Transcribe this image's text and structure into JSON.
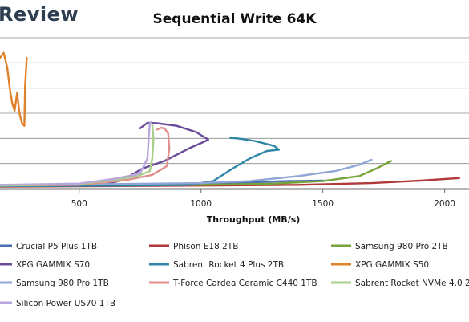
{
  "header": {
    "watermark": "Review"
  },
  "chart_data": {
    "type": "line",
    "title": "Sequential Write 64K",
    "xlabel": "Throughput (MB/s)",
    "ylabel": "",
    "x_ticks": [
      500,
      1000,
      1500,
      2000
    ],
    "xlim": [
      175,
      2100
    ],
    "ylim": [
      0,
      6
    ],
    "y_gridlines": [
      1,
      2,
      3,
      4,
      5,
      6
    ],
    "grid": true,
    "legend_position": "bottom",
    "series": [
      {
        "name": "Crucial P5 Plus 1TB",
        "color": "#4a6fb3",
        "points": [
          [
            175,
            0.1
          ],
          [
            500,
            0.12
          ],
          [
            800,
            0.15
          ],
          [
            1000,
            0.2
          ],
          [
            1200,
            0.25
          ],
          [
            1350,
            0.3
          ],
          [
            1500,
            0.32
          ]
        ]
      },
      {
        "name": "Phison E18 2TB",
        "color": "#b03a3a",
        "points": [
          [
            175,
            0.08
          ],
          [
            600,
            0.1
          ],
          [
            1000,
            0.12
          ],
          [
            1400,
            0.15
          ],
          [
            1700,
            0.22
          ],
          [
            1900,
            0.32
          ],
          [
            2060,
            0.42
          ]
        ]
      },
      {
        "name": "Samsung 980 Pro 2TB",
        "color": "#77a33a",
        "points": [
          [
            175,
            0.1
          ],
          [
            600,
            0.12
          ],
          [
            1000,
            0.15
          ],
          [
            1300,
            0.2
          ],
          [
            1500,
            0.3
          ],
          [
            1650,
            0.5
          ],
          [
            1720,
            0.8
          ],
          [
            1770,
            1.05
          ],
          [
            1780,
            1.1
          ]
        ]
      },
      {
        "name": "XPG GAMMIX S70",
        "color": "#6b4c9a",
        "points": [
          [
            175,
            0.12
          ],
          [
            600,
            0.15
          ],
          [
            680,
            0.35
          ],
          [
            760,
            0.8
          ],
          [
            850,
            1.1
          ],
          [
            950,
            1.6
          ],
          [
            1020,
            1.9
          ],
          [
            1030,
            1.95
          ],
          [
            980,
            2.25
          ],
          [
            900,
            2.5
          ],
          [
            820,
            2.6
          ],
          [
            780,
            2.62
          ],
          [
            750,
            2.4
          ]
        ]
      },
      {
        "name": "Sabrent Rocket 4 Plus 2TB",
        "color": "#2f86a6",
        "points": [
          [
            175,
            0.1
          ],
          [
            700,
            0.12
          ],
          [
            950,
            0.15
          ],
          [
            1050,
            0.3
          ],
          [
            1130,
            0.8
          ],
          [
            1200,
            1.2
          ],
          [
            1270,
            1.5
          ],
          [
            1320,
            1.55
          ],
          [
            1300,
            1.7
          ],
          [
            1220,
            1.9
          ],
          [
            1150,
            2.0
          ],
          [
            1120,
            2.02
          ]
        ]
      },
      {
        "name": "XPG GAMMIX S50",
        "color": "#e0822b",
        "points": [
          [
            175,
            5.2
          ],
          [
            190,
            5.4
          ],
          [
            205,
            4.8
          ],
          [
            215,
            4.0
          ],
          [
            225,
            3.4
          ],
          [
            235,
            3.1
          ],
          [
            245,
            3.8
          ],
          [
            255,
            3.0
          ],
          [
            265,
            2.6
          ],
          [
            275,
            2.5
          ],
          [
            278,
            4.1
          ],
          [
            285,
            5.2
          ]
        ]
      },
      {
        "name": "Samsung 980 Pro 1TB",
        "color": "#8fa6d6",
        "points": [
          [
            175,
            0.15
          ],
          [
            600,
            0.18
          ],
          [
            1000,
            0.22
          ],
          [
            1200,
            0.3
          ],
          [
            1400,
            0.5
          ],
          [
            1550,
            0.7
          ],
          [
            1650,
            0.95
          ],
          [
            1700,
            1.15
          ]
        ]
      },
      {
        "name": "T-Force Cardea Ceramic C440 1TB",
        "color": "#e08e8e",
        "points": [
          [
            175,
            0.12
          ],
          [
            500,
            0.15
          ],
          [
            700,
            0.35
          ],
          [
            800,
            0.55
          ],
          [
            860,
            0.9
          ],
          [
            870,
            1.6
          ],
          [
            865,
            2.2
          ],
          [
            850,
            2.4
          ],
          [
            835,
            2.42
          ],
          [
            820,
            2.35
          ]
        ]
      },
      {
        "name": "Sabrent Rocket NVMe 4.0 2TB",
        "color": "#a9cf8a",
        "points": [
          [
            175,
            0.12
          ],
          [
            500,
            0.18
          ],
          [
            650,
            0.35
          ],
          [
            740,
            0.5
          ],
          [
            790,
            0.7
          ],
          [
            800,
            1.2
          ],
          [
            805,
            2.0
          ],
          [
            800,
            2.55
          ],
          [
            795,
            2.6
          ]
        ]
      },
      {
        "name": "Silicon Power US70 1TB",
        "color": "#b9a6dc",
        "points": [
          [
            175,
            0.15
          ],
          [
            500,
            0.2
          ],
          [
            650,
            0.4
          ],
          [
            750,
            0.6
          ],
          [
            780,
            1.2
          ],
          [
            785,
            2.0
          ],
          [
            790,
            2.6
          ],
          [
            795,
            2.65
          ]
        ]
      }
    ]
  }
}
